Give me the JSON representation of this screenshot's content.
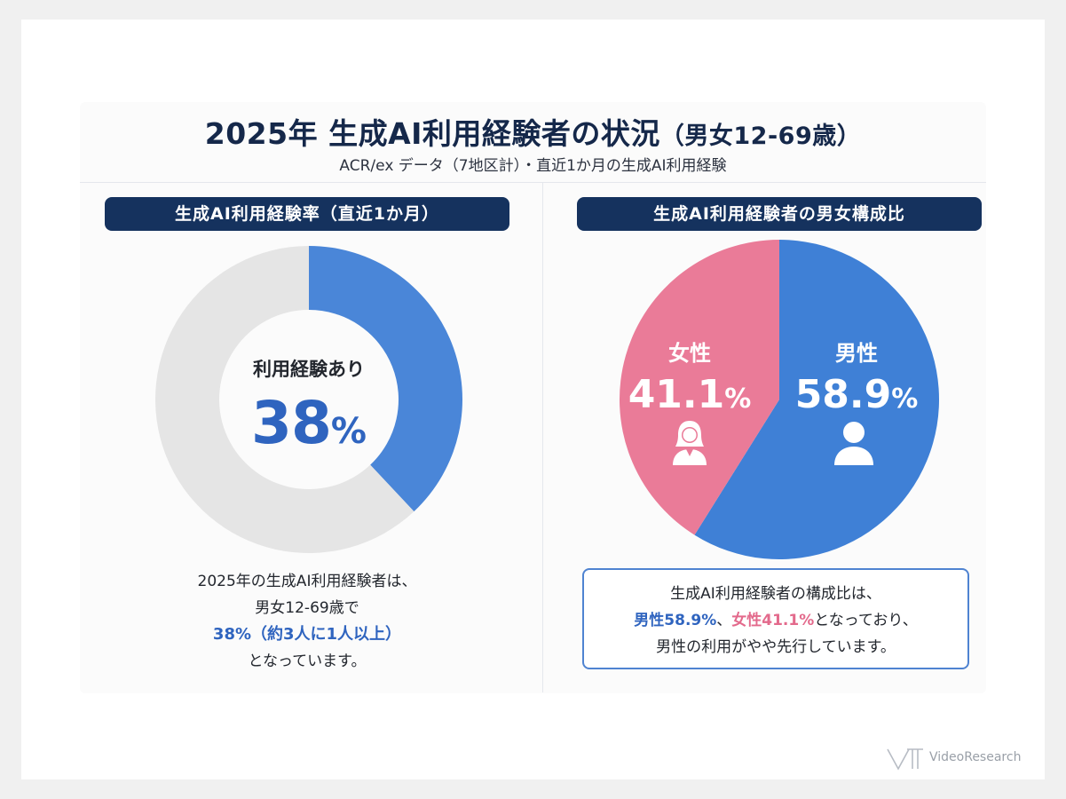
{
  "title": {
    "main": "2025年 生成AI利用経験者の状況",
    "suffix": "（男女12-69歳）"
  },
  "subtitle": "ACR/ex データ（7地区計）・直近1か月の生成AI利用経験",
  "left_panel": {
    "header": "生成AI利用経験率（直近1か月）",
    "center_label": "利用経験あり",
    "center_value": "38",
    "center_unit": "%",
    "description": {
      "line1": "2025年の生成AI利用経験者は、",
      "line2": "男女12-69歳で",
      "line3": "38%（約3人に1人以上）",
      "line4": "となっています。"
    }
  },
  "right_panel": {
    "header": "生成AI利用経験者の男女構成比",
    "female": {
      "label": "女性",
      "value": "41.1",
      "unit": "%"
    },
    "male": {
      "label": "男性",
      "value": "58.9",
      "unit": "%"
    },
    "note": {
      "line1": "生成AI利用経験者の構成比は、",
      "male_part": "男性58.9%",
      "sep": "、",
      "female_part": "女性41.1%",
      "line2_rest": "となっており、",
      "line3": "男性の利用がやや先行しています。"
    }
  },
  "logo": "VideoResearch",
  "colors": {
    "blue": "#4a86d8",
    "gray": "#e5e5e5",
    "pink": "#ea7b98",
    "navy": "#15325e"
  },
  "chart_data": [
    {
      "type": "pie",
      "variant": "donut",
      "categories": [
        "利用経験あり",
        ""
      ],
      "values": [
        38,
        62
      ],
      "colors": [
        "#4a86d8",
        "#e5e5e5"
      ],
      "title": "生成AI利用経験率（直近1か月）"
    },
    {
      "type": "pie",
      "categories": [
        "男性",
        "女性"
      ],
      "values": [
        58.9,
        41.1
      ],
      "colors": [
        "#3f80d6",
        "#ea7b98"
      ],
      "title": "生成AI利用経験者の男女構成比"
    }
  ]
}
